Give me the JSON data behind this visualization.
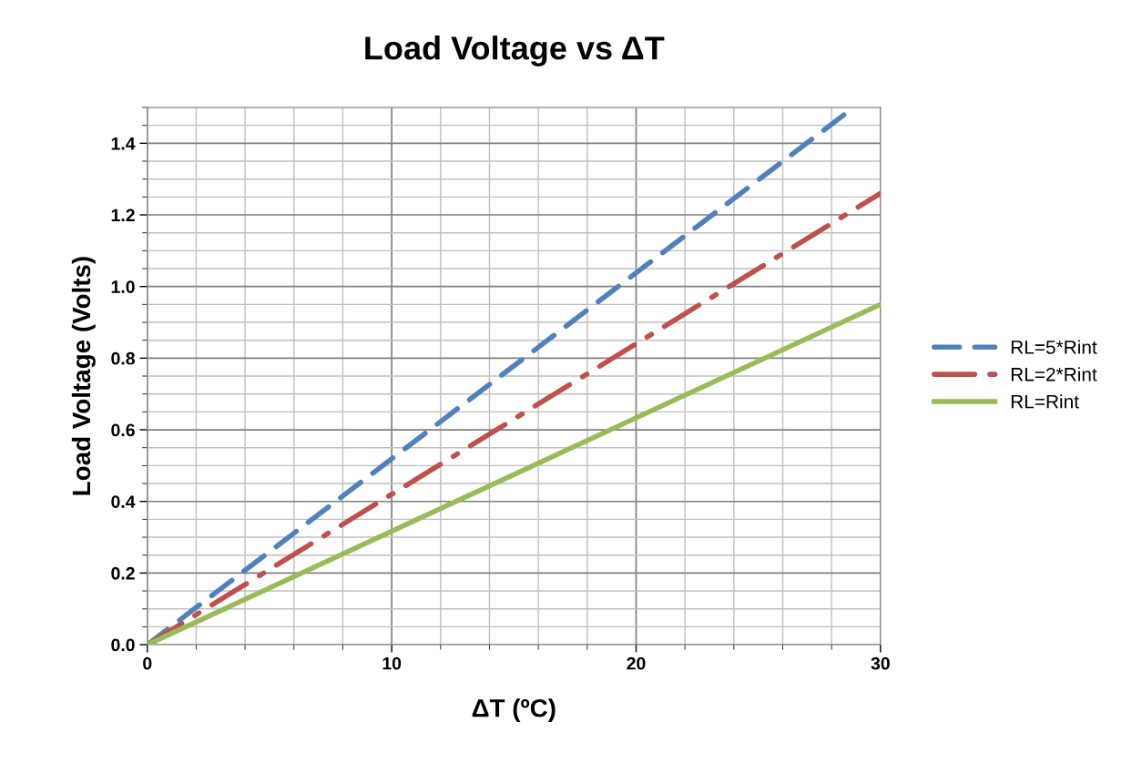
{
  "chart_data": {
    "type": "line",
    "title": "Load Voltage vs ΔT",
    "xlabel": "ΔT (ºC)",
    "ylabel": "Load Voltage (Volts)",
    "xlim": [
      0,
      30
    ],
    "xticks": [
      0,
      10,
      20,
      30
    ],
    "ylim": [
      0,
      1.5
    ],
    "yticks": [
      {
        "value": 0,
        "label": "0.0"
      },
      0.2,
      0.4,
      0.6,
      0.8,
      {
        "value": 1.0,
        "label": "1.0"
      },
      1.2,
      1.4
    ],
    "grid": true,
    "legend": "right",
    "series": [
      {
        "name": "RL=5*Rint",
        "color": "#4f81bd",
        "line_style": "dashed",
        "x": [
          0,
          28.9
        ],
        "values": [
          0,
          1.5
        ]
      },
      {
        "name": "RL=2*Rint",
        "color": "#c0504d",
        "line_style": "dashdot",
        "x": [
          0,
          30
        ],
        "values": [
          0,
          1.26
        ]
      },
      {
        "name": "RL=Rint",
        "color": "#9bbb59",
        "line_style": "solid",
        "x": [
          0,
          30
        ],
        "values": [
          0,
          0.95
        ]
      }
    ]
  }
}
